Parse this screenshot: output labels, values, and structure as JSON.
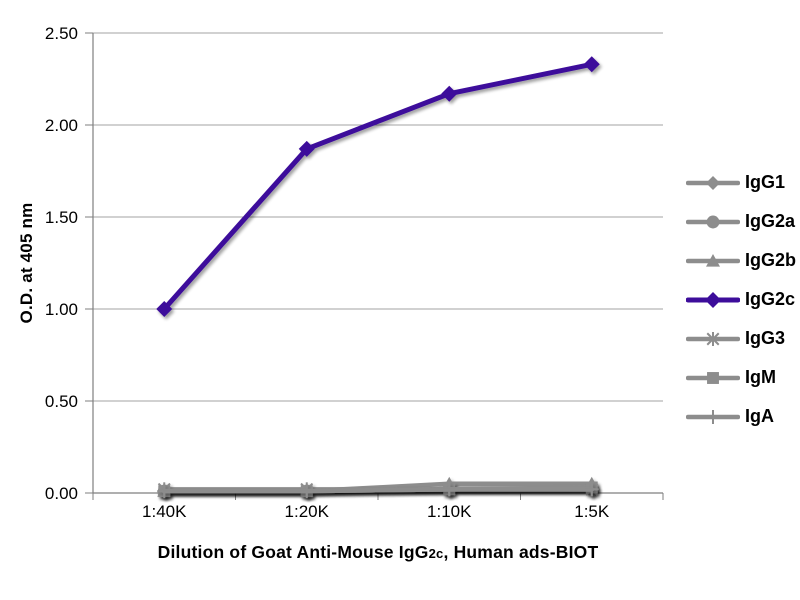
{
  "chart_data": {
    "type": "line",
    "title": "",
    "xlabel": "Dilution of Goat Anti-Mouse IgG2c, Human ads-BIOT",
    "xlabel_parts": {
      "prefix": "Dilution of Goat Anti-Mouse IgG",
      "subscript": "2c",
      "suffix": ", Human ads-BIOT"
    },
    "ylabel": "O.D. at 405 nm",
    "categories": [
      "1:40K",
      "1:20K",
      "1:10K",
      "1:5K"
    ],
    "y_ticks": [
      "0.00",
      "0.50",
      "1.00",
      "1.50",
      "2.00",
      "2.50"
    ],
    "ylim": [
      0,
      2.5
    ],
    "grid": "horizontal",
    "legend_position": "right",
    "colors": {
      "accent": "#3D0D9B",
      "muted": "#8D8D8D",
      "gridline": "#A3A3A3",
      "axis": "#7F7F7F",
      "text": "#000000",
      "background": "#FFFFFF"
    },
    "series": [
      {
        "name": "IgG1",
        "marker": "diamond",
        "color": "#8D8D8D",
        "values": [
          0.01,
          0.01,
          0.02,
          0.02
        ]
      },
      {
        "name": "IgG2a",
        "marker": "circle",
        "color": "#8D8D8D",
        "values": [
          0.01,
          0.01,
          0.02,
          0.02
        ]
      },
      {
        "name": "IgG2b",
        "marker": "triangle",
        "color": "#8D8D8D",
        "values": [
          0.01,
          0.01,
          0.05,
          0.05
        ]
      },
      {
        "name": "IgG2c",
        "marker": "diamond",
        "color": "#3D0D9B",
        "values": [
          1.0,
          1.87,
          2.17,
          2.33
        ]
      },
      {
        "name": "IgG3",
        "marker": "asterisk",
        "color": "#8D8D8D",
        "values": [
          0.02,
          0.02,
          0.02,
          0.02
        ]
      },
      {
        "name": "IgM",
        "marker": "square",
        "color": "#8D8D8D",
        "values": [
          0.01,
          0.01,
          0.02,
          0.03
        ]
      },
      {
        "name": "IgA",
        "marker": "plus",
        "color": "#8D8D8D",
        "values": [
          0.01,
          0.01,
          0.02,
          0.02
        ]
      }
    ]
  }
}
